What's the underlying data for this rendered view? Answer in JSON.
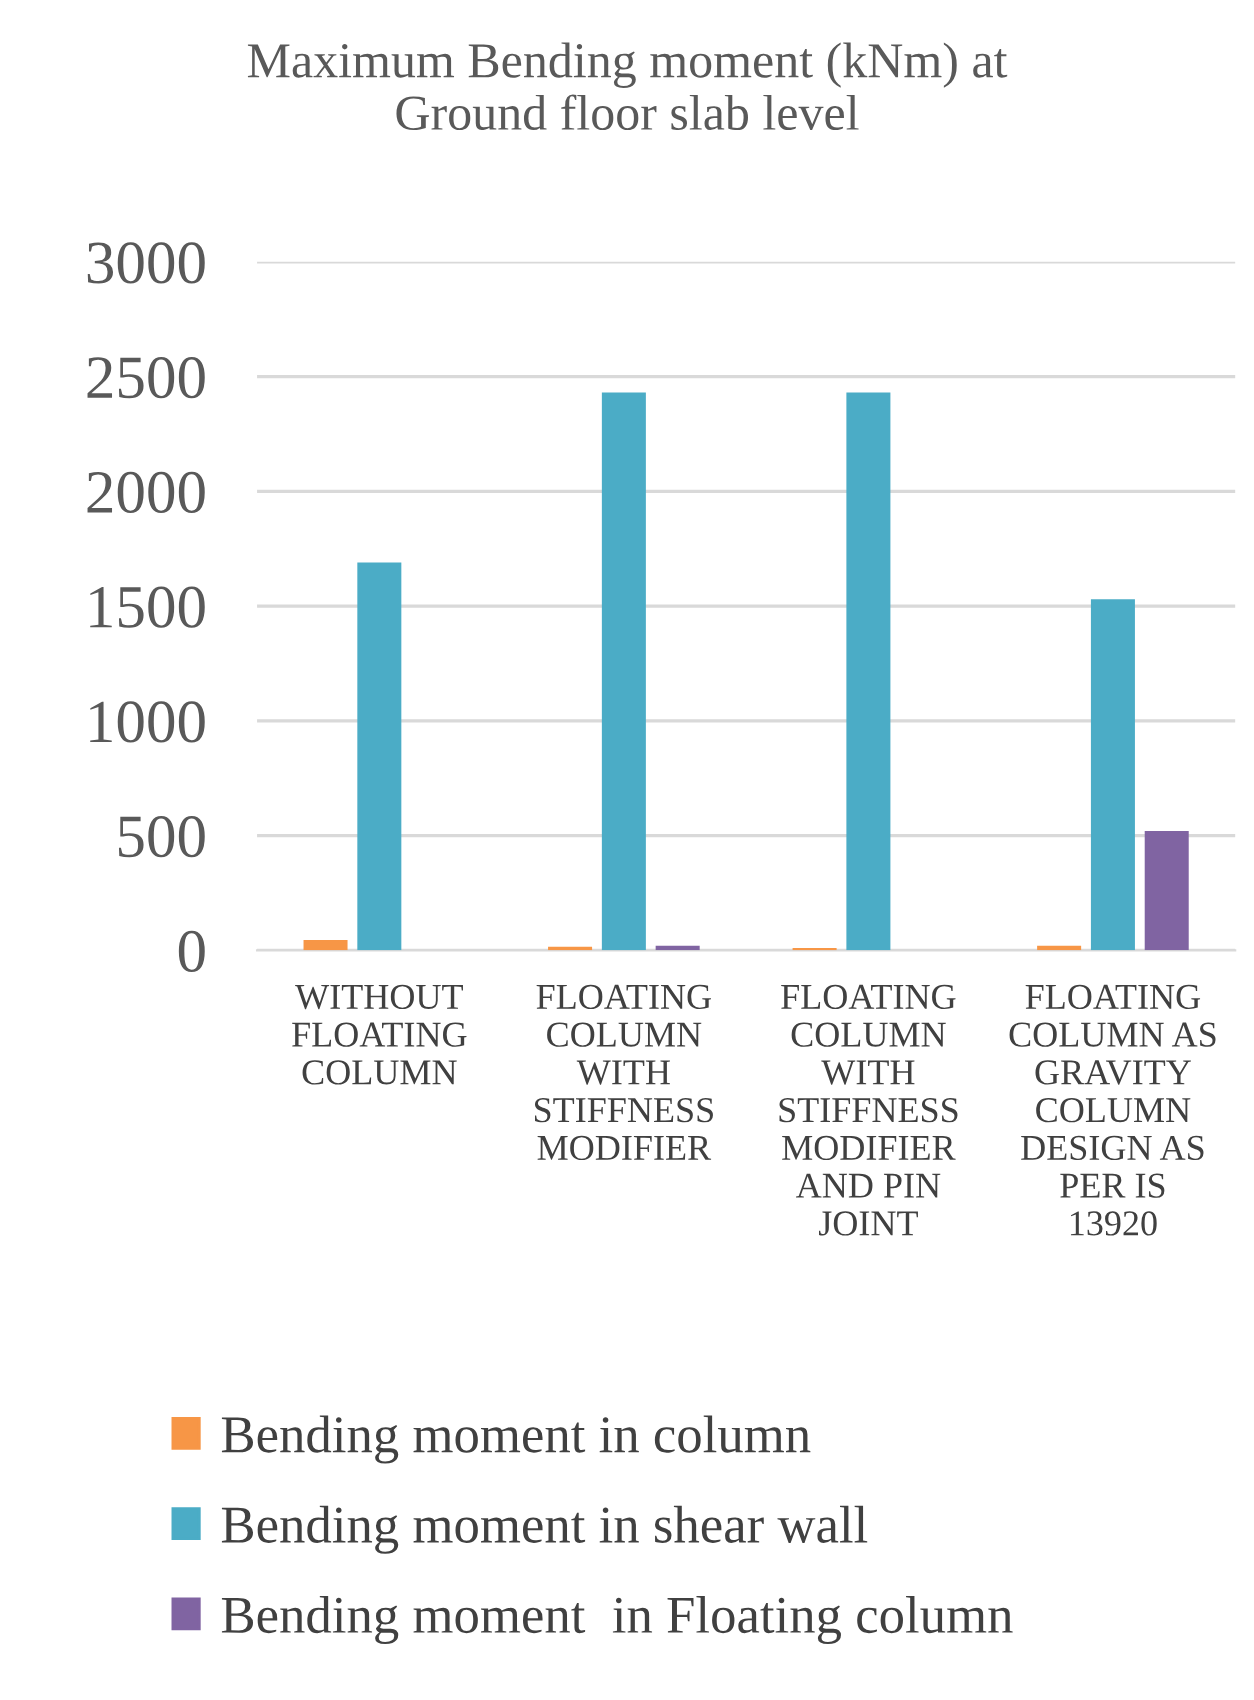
{
  "chart_data": {
    "type": "bar",
    "title": "Maximum Bending moment (kNm) at\nGround floor slab level",
    "categories": [
      "WITHOUT\nFLOATING\nCOLUMN",
      "FLOATING\nCOLUMN\nWITH\nSTIFFNESS\nMODIFIER",
      "FLOATING\nCOLUMN\nWITH\nSTIFFNESS\nMODIFIER\nAND PIN\nJOINT",
      "FLOATING\nCOLUMN AS\nGRAVITY\nCOLUMN\nDESIGN AS\nPER IS\n13920"
    ],
    "series": [
      {
        "name": "Bending moment in column",
        "color": "#f79646",
        "values": [
          45,
          15,
          10,
          20
        ]
      },
      {
        "name": "Bending moment in shear wall",
        "color": "#4bacc6",
        "values": [
          1690,
          2430,
          2430,
          1530
        ]
      },
      {
        "name": "Bending moment  in Floating column",
        "color": "#8064a2",
        "values": [
          0,
          20,
          0,
          520
        ]
      }
    ],
    "ylim": [
      0,
      3000
    ],
    "yticks": [
      0,
      500,
      1000,
      1500,
      2000,
      2500,
      3000
    ],
    "grid": "y",
    "legend": "bottom"
  }
}
